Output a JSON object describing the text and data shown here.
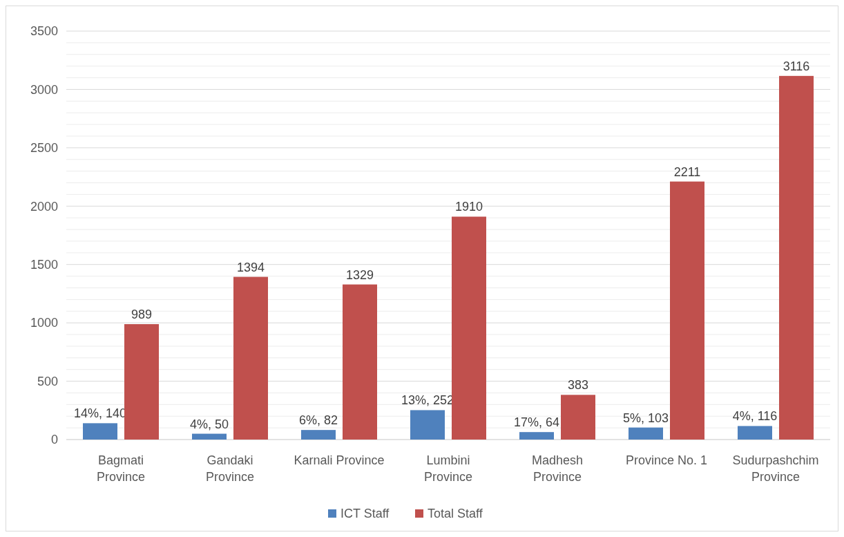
{
  "chart_data": {
    "type": "bar",
    "categories": [
      "Bagmati\nProvince",
      "Gandaki\nProvince",
      "Karnali Province",
      "Lumbini\nProvince",
      "Madhesh\nProvince",
      "Province No. 1",
      "Sudurpashchim\nProvince"
    ],
    "series": [
      {
        "name": "ICT Staff",
        "color": "#4f81bd",
        "values": [
          140,
          50,
          82,
          252,
          64,
          103,
          116
        ],
        "value_labels": [
          "14%, 140",
          "4%, 50",
          "6%, 82",
          "13%, 252",
          "17%, 64",
          "5%, 103",
          "4%, 116"
        ]
      },
      {
        "name": "Total Staff",
        "color": "#c0504d",
        "values": [
          989,
          1394,
          1329,
          1910,
          383,
          2211,
          3116
        ],
        "value_labels": [
          "989",
          "1394",
          "1329",
          "1910",
          "383",
          "2211",
          "3116"
        ]
      }
    ],
    "ylim": [
      0,
      3500
    ],
    "yticks": [
      0,
      {
        "value": 100,
        "label": null
      },
      {
        "value": 200,
        "label": null
      },
      {
        "value": 300,
        "label": null
      },
      {
        "value": 400,
        "label": null
      },
      500,
      {
        "value": 600,
        "label": null
      },
      {
        "value": 700,
        "label": null
      },
      {
        "value": 800,
        "label": null
      },
      {
        "value": 900,
        "label": null
      },
      1000,
      {
        "value": 1100,
        "label": null
      },
      {
        "value": 1200,
        "label": null
      },
      {
        "value": 1300,
        "label": null
      },
      {
        "value": 1400,
        "label": null
      },
      1500,
      {
        "value": 1600,
        "label": null
      },
      {
        "value": 1700,
        "label": null
      },
      {
        "value": 1800,
        "label": null
      },
      {
        "value": 1900,
        "label": null
      },
      2000,
      {
        "value": 2100,
        "label": null
      },
      {
        "value": 2200,
        "label": null
      },
      {
        "value": 2300,
        "label": null
      },
      {
        "value": 2400,
        "label": null
      },
      2500,
      {
        "value": 2600,
        "label": null
      },
      {
        "value": 2700,
        "label": null
      },
      {
        "value": 2800,
        "label": null
      },
      {
        "value": 2900,
        "label": null
      },
      3000,
      {
        "value": 3100,
        "label": null
      },
      {
        "value": 3200,
        "label": null
      },
      {
        "value": 3300,
        "label": null
      },
      {
        "value": 3400,
        "label": null
      },
      3500
    ],
    "grid": "y",
    "legend": "bottom"
  }
}
